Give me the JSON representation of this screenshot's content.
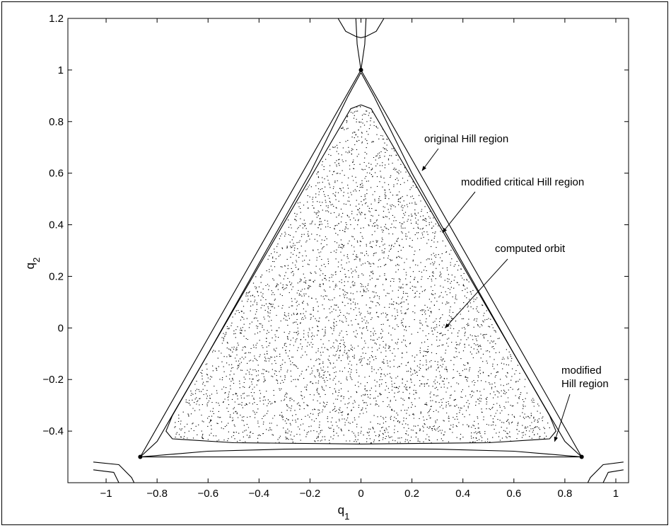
{
  "chart_data": {
    "type": "scatter",
    "xlabel": "q1",
    "ylabel": "q2",
    "xlim": [
      -1.15,
      1.05
    ],
    "ylim": [
      -0.6,
      1.2
    ],
    "xticks": [
      -1,
      -0.8,
      -0.6,
      -0.4,
      -0.2,
      0,
      0.2,
      0.4,
      0.6,
      0.8,
      1
    ],
    "yticks": [
      -0.4,
      -0.2,
      0,
      0.2,
      0.4,
      0.6,
      0.8,
      1,
      1.2
    ],
    "xtick_labels": [
      "−1",
      "−0.8",
      "−0.6",
      "−0.4",
      "−0.2",
      "0",
      "0.2",
      "0.4",
      "0.6",
      "0.8",
      "1"
    ],
    "ytick_labels": [
      "−0.4",
      "−0.2",
      "0",
      "0.2",
      "0.4",
      "0.6",
      "0.8",
      "1",
      "1.2"
    ],
    "grid": false,
    "vertices": [
      {
        "x": 0,
        "y": 1
      },
      {
        "x": -0.866,
        "y": -0.5
      },
      {
        "x": 0.866,
        "y": -0.5
      }
    ],
    "curves": [
      {
        "name": "original Hill region",
        "points": [
          [
            0,
            1
          ],
          [
            0.866,
            -0.5
          ],
          [
            -0.866,
            -0.5
          ],
          [
            0,
            1
          ]
        ]
      },
      {
        "name": "modified critical Hill region",
        "points": [
          [
            0,
            0.99
          ],
          [
            0.05,
            0.9
          ],
          [
            0.2,
            0.6
          ],
          [
            0.4,
            0.25
          ],
          [
            0.6,
            -0.1
          ],
          [
            0.8,
            -0.44
          ],
          [
            0.866,
            -0.5
          ],
          [
            0.6,
            -0.478
          ],
          [
            0.3,
            -0.47
          ],
          [
            0,
            -0.468
          ],
          [
            -0.3,
            -0.47
          ],
          [
            -0.6,
            -0.478
          ],
          [
            -0.866,
            -0.5
          ],
          [
            -0.8,
            -0.44
          ],
          [
            -0.6,
            -0.1
          ],
          [
            -0.4,
            0.25
          ],
          [
            -0.2,
            0.6
          ],
          [
            -0.05,
            0.9
          ],
          [
            0,
            0.99
          ]
        ]
      },
      {
        "name": "modified Hill region",
        "points": [
          [
            0,
            0.865
          ],
          [
            0.04,
            0.85
          ],
          [
            0.2,
            0.58
          ],
          [
            0.4,
            0.24
          ],
          [
            0.6,
            -0.1
          ],
          [
            0.74,
            -0.34
          ],
          [
            0.765,
            -0.4
          ],
          [
            0.74,
            -0.43
          ],
          [
            0.5,
            -0.445
          ],
          [
            0,
            -0.45
          ],
          [
            -0.5,
            -0.445
          ],
          [
            -0.74,
            -0.43
          ],
          [
            -0.765,
            -0.4
          ],
          [
            -0.74,
            -0.34
          ],
          [
            -0.6,
            -0.1
          ],
          [
            -0.4,
            0.24
          ],
          [
            -0.2,
            0.58
          ],
          [
            -0.04,
            0.85
          ],
          [
            0,
            0.865
          ]
        ]
      },
      {
        "name": "",
        "points": [
          [
            -0.09,
            1.2
          ],
          [
            -0.06,
            1.15
          ],
          [
            -0.02,
            1.13
          ],
          [
            0,
            1.125
          ],
          [
            0.02,
            1.13
          ],
          [
            0.06,
            1.15
          ],
          [
            0.09,
            1.2
          ]
        ]
      },
      {
        "name": "",
        "points": [
          [
            -0.02,
            1.2
          ],
          [
            -0.015,
            1.1
          ],
          [
            0,
            1.0
          ],
          [
            0.015,
            1.1
          ],
          [
            0.02,
            1.2
          ]
        ]
      },
      {
        "name": "",
        "points": [
          [
            -1.05,
            -0.52
          ],
          [
            -0.95,
            -0.53
          ],
          [
            -0.9,
            -0.58
          ],
          [
            -0.89,
            -0.6
          ]
        ]
      },
      {
        "name": "",
        "points": [
          [
            -1.05,
            -0.55
          ],
          [
            -0.97,
            -0.56
          ],
          [
            -0.95,
            -0.6
          ]
        ]
      },
      {
        "name": "",
        "points": [
          [
            1.03,
            -0.52
          ],
          [
            0.95,
            -0.53
          ],
          [
            0.9,
            -0.58
          ],
          [
            0.89,
            -0.6
          ]
        ]
      },
      {
        "name": "",
        "points": [
          [
            1.03,
            -0.55
          ],
          [
            0.97,
            -0.56
          ],
          [
            0.95,
            -0.6
          ]
        ]
      }
    ],
    "annotations": [
      {
        "text": "original Hill region",
        "x": 0.24,
        "y": 0.61
      },
      {
        "text": "modified critical Hill region",
        "x": 0.32,
        "y": 0.37
      },
      {
        "text": "computed orbit",
        "x": 0.33,
        "y": 0.0
      },
      {
        "text": "modified",
        "x": 0.76,
        "y": -0.44
      },
      {
        "text": "Hill region",
        "x": 0.76,
        "y": -0.44
      }
    ],
    "annotation_lines": [
      {
        "text": "original Hill region",
        "lines": [
          "original Hill region"
        ]
      },
      {
        "text": "modified critical Hill region",
        "lines": [
          "modified critical Hill region"
        ]
      },
      {
        "text": "computed orbit",
        "lines": [
          "computed orbit"
        ]
      },
      {
        "text": "modified Hill region",
        "lines": [
          "modified",
          "Hill region"
        ]
      }
    ],
    "orbit_region": "filled with dense scattered points inside the modified Hill region"
  }
}
